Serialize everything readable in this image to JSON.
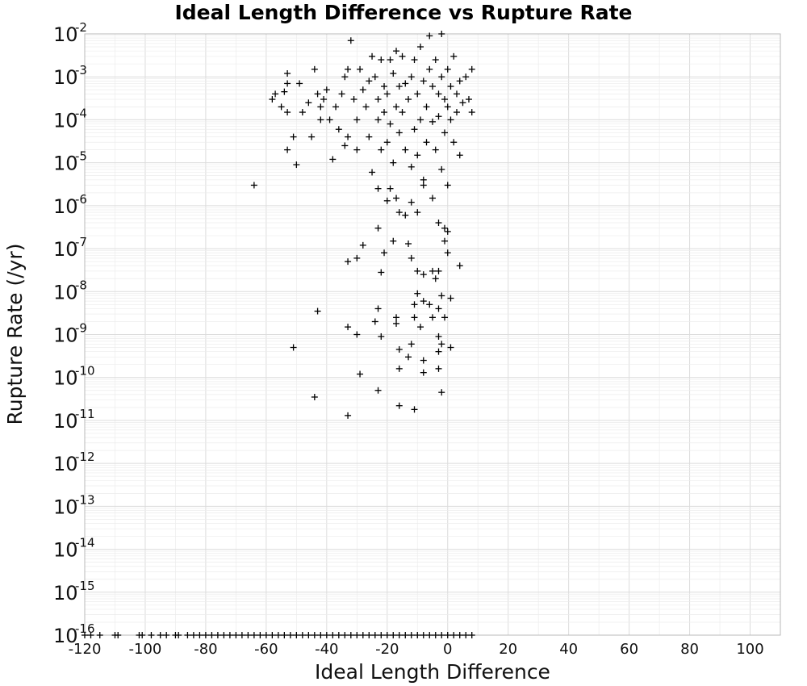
{
  "chart_data": {
    "type": "scatter",
    "title": "Ideal Length Difference vs Rupture Rate",
    "xlabel": "Ideal Length Difference",
    "ylabel": "Rupture Rate (/yr)",
    "xlim": [
      -120,
      110
    ],
    "ylim_log10": [
      -16,
      -2
    ],
    "y_scale": "log",
    "x_ticks": [
      "-120",
      "-100",
      "-80",
      "-60",
      "-40",
      "-20",
      "0",
      "20",
      "40",
      "60",
      "80",
      "100"
    ],
    "y_ticks": [
      {
        "base": "10",
        "exp": "-2"
      },
      {
        "base": "10",
        "exp": "-3"
      },
      {
        "base": "10",
        "exp": "-4"
      },
      {
        "base": "10",
        "exp": "-5"
      },
      {
        "base": "10",
        "exp": "-6"
      },
      {
        "base": "10",
        "exp": "-7"
      },
      {
        "base": "10",
        "exp": "-8"
      },
      {
        "base": "10",
        "exp": "-9"
      },
      {
        "base": "10",
        "exp": "-10"
      },
      {
        "base": "10",
        "exp": "-11"
      },
      {
        "base": "10",
        "exp": "-12"
      },
      {
        "base": "10",
        "exp": "-13"
      },
      {
        "base": "10",
        "exp": "-14"
      },
      {
        "base": "10",
        "exp": "-15"
      },
      {
        "base": "10",
        "exp": "-16"
      }
    ],
    "grid": true,
    "marker": "plus",
    "marker_color": "#000000",
    "points": [
      {
        "x": -64,
        "y": 3e-06
      },
      {
        "x": -58,
        "y": 0.0003
      },
      {
        "x": -57,
        "y": 0.0004
      },
      {
        "x": -55,
        "y": 0.0002
      },
      {
        "x": -54,
        "y": 0.00045
      },
      {
        "x": -53,
        "y": 0.0012
      },
      {
        "x": -53,
        "y": 0.0007
      },
      {
        "x": -53,
        "y": 0.00015
      },
      {
        "x": -53,
        "y": 2e-05
      },
      {
        "x": -51,
        "y": 4e-05
      },
      {
        "x": -50,
        "y": 9e-06
      },
      {
        "x": -49,
        "y": 0.0007
      },
      {
        "x": -48,
        "y": 0.00015
      },
      {
        "x": -46,
        "y": 0.00025
      },
      {
        "x": -45,
        "y": 4e-05
      },
      {
        "x": -44,
        "y": 0.0015
      },
      {
        "x": -43,
        "y": 0.0004
      },
      {
        "x": -42,
        "y": 0.0002
      },
      {
        "x": -42,
        "y": 0.0001
      },
      {
        "x": -41,
        "y": 0.0003
      },
      {
        "x": -40,
        "y": 0.0005
      },
      {
        "x": -39,
        "y": 0.0001
      },
      {
        "x": -38,
        "y": 1.2e-05
      },
      {
        "x": -37,
        "y": 0.0002
      },
      {
        "x": -36,
        "y": 6e-05
      },
      {
        "x": -35,
        "y": 0.0004
      },
      {
        "x": -34,
        "y": 0.001
      },
      {
        "x": -34,
        "y": 2.5e-05
      },
      {
        "x": -33,
        "y": 4e-05
      },
      {
        "x": -33,
        "y": 0.0015
      },
      {
        "x": -32,
        "y": 0.007
      },
      {
        "x": -31,
        "y": 0.0003
      },
      {
        "x": -30,
        "y": 2e-05
      },
      {
        "x": -30,
        "y": 0.0001
      },
      {
        "x": -29,
        "y": 0.0015
      },
      {
        "x": -28,
        "y": 0.0005
      },
      {
        "x": -27,
        "y": 0.0002
      },
      {
        "x": -26,
        "y": 0.0008
      },
      {
        "x": -26,
        "y": 4e-05
      },
      {
        "x": -25,
        "y": 6e-06
      },
      {
        "x": -25,
        "y": 0.003
      },
      {
        "x": -24,
        "y": 0.001
      },
      {
        "x": -23,
        "y": 0.0003
      },
      {
        "x": -23,
        "y": 0.0001
      },
      {
        "x": -22,
        "y": 0.0025
      },
      {
        "x": -22,
        "y": 2e-05
      },
      {
        "x": -21,
        "y": 0.0006
      },
      {
        "x": -21,
        "y": 0.00015
      },
      {
        "x": -20,
        "y": 0.0004
      },
      {
        "x": -20,
        "y": 3e-05
      },
      {
        "x": -19,
        "y": 0.0025
      },
      {
        "x": -19,
        "y": 8e-05
      },
      {
        "x": -18,
        "y": 0.0012
      },
      {
        "x": -18,
        "y": 1e-05
      },
      {
        "x": -17,
        "y": 0.004
      },
      {
        "x": -17,
        "y": 0.0002
      },
      {
        "x": -16,
        "y": 0.0006
      },
      {
        "x": -16,
        "y": 5e-05
      },
      {
        "x": -15,
        "y": 0.003
      },
      {
        "x": -15,
        "y": 0.00015
      },
      {
        "x": -14,
        "y": 0.0007
      },
      {
        "x": -14,
        "y": 2e-05
      },
      {
        "x": -13,
        "y": 0.0003
      },
      {
        "x": -12,
        "y": 0.001
      },
      {
        "x": -12,
        "y": 8e-06
      },
      {
        "x": -11,
        "y": 0.0025
      },
      {
        "x": -11,
        "y": 6e-05
      },
      {
        "x": -10,
        "y": 0.0004
      },
      {
        "x": -10,
        "y": 1.5e-05
      },
      {
        "x": -9,
        "y": 0.005
      },
      {
        "x": -9,
        "y": 0.0001
      },
      {
        "x": -8,
        "y": 0.0008
      },
      {
        "x": -8,
        "y": 4e-06
      },
      {
        "x": -7,
        "y": 0.0002
      },
      {
        "x": -7,
        "y": 3e-05
      },
      {
        "x": -6,
        "y": 0.0015
      },
      {
        "x": -6,
        "y": 0.009
      },
      {
        "x": -5,
        "y": 0.0006
      },
      {
        "x": -5,
        "y": 9e-05
      },
      {
        "x": -4,
        "y": 0.0025
      },
      {
        "x": -4,
        "y": 2e-05
      },
      {
        "x": -3,
        "y": 0.0004
      },
      {
        "x": -3,
        "y": 0.00012
      },
      {
        "x": -2,
        "y": 0.001
      },
      {
        "x": -2,
        "y": 7e-06
      },
      {
        "x": -2,
        "y": 0.01
      },
      {
        "x": -1,
        "y": 0.0003
      },
      {
        "x": -1,
        "y": 5e-05
      },
      {
        "x": 0,
        "y": 0.0015
      },
      {
        "x": 0,
        "y": 0.0002
      },
      {
        "x": 0,
        "y": 3e-06
      },
      {
        "x": 1,
        "y": 0.0006
      },
      {
        "x": 1,
        "y": 0.0001
      },
      {
        "x": 2,
        "y": 0.003
      },
      {
        "x": 2,
        "y": 3e-05
      },
      {
        "x": 3,
        "y": 0.0004
      },
      {
        "x": 3,
        "y": 0.00015
      },
      {
        "x": 4,
        "y": 0.0008
      },
      {
        "x": 4,
        "y": 1.5e-05
      },
      {
        "x": 5,
        "y": 0.00025
      },
      {
        "x": 6,
        "y": 0.001
      },
      {
        "x": 7,
        "y": 0.0003
      },
      {
        "x": 8,
        "y": 0.0015
      },
      {
        "x": 8,
        "y": 0.00015
      },
      {
        "x": -23,
        "y": 2.5e-06
      },
      {
        "x": -20,
        "y": 1.3e-06
      },
      {
        "x": -19,
        "y": 2.5e-06
      },
      {
        "x": -17,
        "y": 1.5e-06
      },
      {
        "x": -16,
        "y": 7e-07
      },
      {
        "x": -14,
        "y": 6e-07
      },
      {
        "x": -12,
        "y": 1.2e-06
      },
      {
        "x": -10,
        "y": 7e-07
      },
      {
        "x": -8,
        "y": 3e-06
      },
      {
        "x": -5,
        "y": 1.5e-06
      },
      {
        "x": -3,
        "y": 4e-07
      },
      {
        "x": -1,
        "y": 3e-07
      },
      {
        "x": -1,
        "y": 1.5e-07
      },
      {
        "x": 0,
        "y": 2.5e-07
      },
      {
        "x": -23,
        "y": 3e-07
      },
      {
        "x": -30,
        "y": 6e-08
      },
      {
        "x": -33,
        "y": 5e-08
      },
      {
        "x": -28,
        "y": 1.2e-07
      },
      {
        "x": -21,
        "y": 8e-08
      },
      {
        "x": -18,
        "y": 1.5e-07
      },
      {
        "x": -13,
        "y": 1.3e-07
      },
      {
        "x": -12,
        "y": 6e-08
      },
      {
        "x": -10,
        "y": 3e-08
      },
      {
        "x": -8,
        "y": 2.5e-08
      },
      {
        "x": -5,
        "y": 3e-08
      },
      {
        "x": -4,
        "y": 2e-08
      },
      {
        "x": -3,
        "y": 3e-08
      },
      {
        "x": 0,
        "y": 8e-08
      },
      {
        "x": 4,
        "y": 4e-08
      },
      {
        "x": -22,
        "y": 2.8e-08
      },
      {
        "x": -11,
        "y": 5e-09
      },
      {
        "x": -10,
        "y": 9e-09
      },
      {
        "x": -8,
        "y": 6e-09
      },
      {
        "x": -6,
        "y": 5e-09
      },
      {
        "x": -3,
        "y": 4e-09
      },
      {
        "x": -2,
        "y": 8e-09
      },
      {
        "x": 1,
        "y": 7e-09
      },
      {
        "x": -43,
        "y": 3.5e-09
      },
      {
        "x": -23,
        "y": 4e-09
      },
      {
        "x": -17,
        "y": 2.5e-09
      },
      {
        "x": -24,
        "y": 2e-09
      },
      {
        "x": -17,
        "y": 1.8e-09
      },
      {
        "x": -11,
        "y": 2.5e-09
      },
      {
        "x": -9,
        "y": 1.5e-09
      },
      {
        "x": -5,
        "y": 2.5e-09
      },
      {
        "x": -1,
        "y": 2.5e-09
      },
      {
        "x": -33,
        "y": 1.5e-09
      },
      {
        "x": -30,
        "y": 1e-09
      },
      {
        "x": -22,
        "y": 9e-10
      },
      {
        "x": -12,
        "y": 6e-10
      },
      {
        "x": -3,
        "y": 9e-10
      },
      {
        "x": -51,
        "y": 5e-10
      },
      {
        "x": -16,
        "y": 4.5e-10
      },
      {
        "x": -13,
        "y": 3e-10
      },
      {
        "x": -8,
        "y": 2.5e-10
      },
      {
        "x": -3,
        "y": 4e-10
      },
      {
        "x": -2,
        "y": 6e-10
      },
      {
        "x": 1,
        "y": 5e-10
      },
      {
        "x": -29,
        "y": 1.2e-10
      },
      {
        "x": -16,
        "y": 1.6e-10
      },
      {
        "x": -8,
        "y": 1.3e-10
      },
      {
        "x": -3,
        "y": 1.6e-10
      },
      {
        "x": -2,
        "y": 4.5e-11
      },
      {
        "x": -23,
        "y": 5e-11
      },
      {
        "x": -44,
        "y": 3.5e-11
      },
      {
        "x": -16,
        "y": 2.2e-11
      },
      {
        "x": -11,
        "y": 1.8e-11
      },
      {
        "x": -33,
        "y": 1.3e-11
      }
    ],
    "floor_points_x": [
      -120,
      -118,
      -115,
      -110,
      -109,
      -102,
      -101,
      -98,
      -95,
      -93,
      -90,
      -89,
      -86,
      -84,
      -82,
      -80,
      -78,
      -76,
      -74,
      -72,
      -70,
      -68,
      -66,
      -64,
      -62,
      -60,
      -58,
      -56,
      -54,
      -52,
      -50,
      -48,
      -46,
      -44,
      -42,
      -40,
      -38,
      -36,
      -34,
      -32,
      -30,
      -28,
      -26,
      -24,
      -22,
      -20,
      -18,
      -16,
      -14,
      -12,
      -10,
      -8,
      -6,
      -4,
      -2,
      0,
      2,
      4,
      6,
      8
    ],
    "floor_y": 1e-16
  }
}
